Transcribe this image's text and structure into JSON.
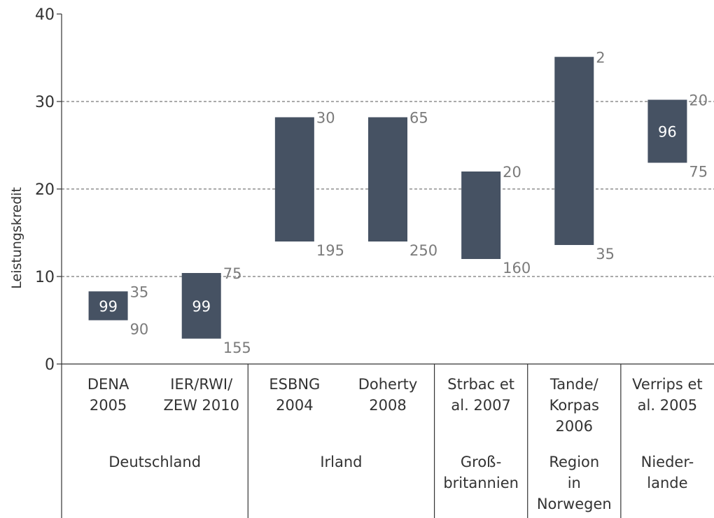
{
  "chart_data": {
    "type": "floating-bar",
    "y_label": "Leistungskredit",
    "categories": [
      [
        "DENA",
        "2005"
      ],
      [
        "IER/RWI/",
        "ZEW 2010"
      ],
      [
        "ESBNG",
        "2004"
      ],
      [
        "Doherty",
        "2008"
      ],
      [
        "Strbac et",
        "al. 2007"
      ],
      [
        "Tande/",
        "Korpas",
        "2006"
      ],
      [
        "Verrips et",
        "al. 2005"
      ]
    ],
    "groups": [
      {
        "label": [
          "Deutschland"
        ],
        "count": 2
      },
      {
        "label": [
          "Irland"
        ],
        "count": 2
      },
      {
        "label": [
          "Groß-",
          "britannien"
        ],
        "count": 1
      },
      {
        "label": [
          "Region",
          "in",
          "Norwegen"
        ],
        "count": 1
      },
      {
        "label": [
          "Nieder-",
          "lande"
        ],
        "count": 1
      }
    ],
    "lows": [
      5,
      2.9,
      14,
      14,
      12,
      13.6,
      23
    ],
    "highs": [
      8.3,
      10.4,
      28.2,
      28.2,
      22,
      35.1,
      30.2
    ],
    "top_labels": [
      "35",
      "75",
      "30",
      "65",
      "20",
      "2",
      "20"
    ],
    "bottom_labels": [
      "90",
      "155",
      "195",
      "250",
      "160",
      "35",
      "75"
    ],
    "inner_labels": [
      "99",
      "99",
      null,
      null,
      null,
      null,
      "96"
    ],
    "color": "#465263",
    "ylim": [
      0,
      40
    ],
    "yticks": [
      0,
      10,
      20,
      30,
      40
    ],
    "grid": true
  }
}
